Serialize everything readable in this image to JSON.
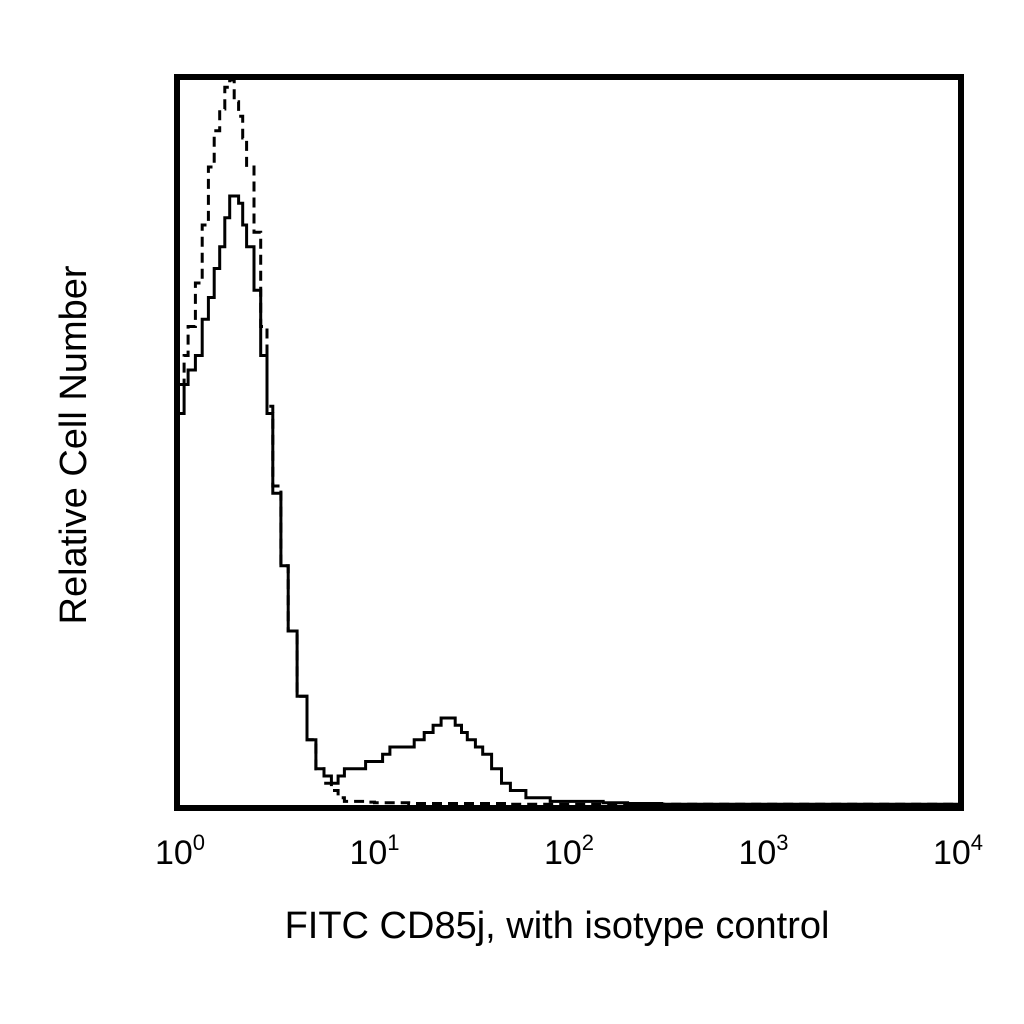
{
  "chart_data": {
    "type": "line",
    "title": "",
    "xlabel": "FITC CD85j, with isotype control",
    "ylabel": "Relative Cell Number",
    "x_scale": "log",
    "xlim": [
      1,
      10000
    ],
    "ylim": [
      0,
      100
    ],
    "grid": false,
    "legend": "none",
    "x_ticks": [
      {
        "value": 1,
        "base": "10",
        "exp": "0"
      },
      {
        "value": 10,
        "base": "10",
        "exp": "1"
      },
      {
        "value": 100,
        "base": "10",
        "exp": "2"
      },
      {
        "value": 1000,
        "base": "10",
        "exp": "3"
      },
      {
        "value": 10000,
        "base": "10",
        "exp": "4"
      }
    ],
    "series": [
      {
        "style": "solid",
        "color": "#000000",
        "x": [
          1.0,
          1.05,
          1.1,
          1.2,
          1.3,
          1.4,
          1.5,
          1.6,
          1.7,
          1.8,
          1.9,
          2.0,
          2.1,
          2.2,
          2.4,
          2.6,
          2.8,
          3.0,
          3.3,
          3.6,
          4.0,
          4.5,
          5.0,
          5.5,
          6.0,
          6.5,
          7.0,
          8.0,
          9.0,
          10,
          11,
          12,
          14,
          16,
          18,
          20,
          22,
          24,
          26,
          28,
          30,
          33,
          36,
          40,
          45,
          50,
          60,
          70,
          80,
          100,
          120,
          150,
          200,
          300,
          500,
          1000,
          2000,
          10000
        ],
        "y": [
          54,
          58,
          60,
          62,
          67,
          70,
          74,
          77,
          81,
          84,
          84,
          83,
          80,
          77,
          71,
          62,
          54,
          43,
          33,
          24,
          15,
          9,
          5,
          4,
          3,
          4,
          5,
          5,
          6,
          6,
          7,
          8,
          8,
          9,
          10,
          11,
          12,
          12,
          11,
          10,
          9,
          8,
          7,
          5,
          3,
          2,
          1,
          1,
          0.5,
          0.5,
          0.5,
          0.3,
          0.2,
          0.1,
          0.1,
          0.1,
          0.1,
          0.1
        ]
      },
      {
        "style": "dashed",
        "color": "#000000",
        "x": [
          1.0,
          1.05,
          1.1,
          1.2,
          1.3,
          1.4,
          1.5,
          1.6,
          1.7,
          1.8,
          1.9,
          2.0,
          2.1,
          2.2,
          2.4,
          2.6,
          2.8,
          3.0,
          3.3,
          3.6,
          4.0,
          4.5,
          5.0,
          5.5,
          6.0,
          6.5,
          7.0,
          8.0,
          9.0,
          10,
          12,
          15,
          20,
          30,
          50,
          100,
          200,
          1000,
          10000
        ],
        "y": [
          58,
          62,
          66,
          72,
          80,
          88,
          93,
          96,
          99,
          100,
          97,
          95,
          92,
          88,
          79,
          66,
          55,
          44,
          33,
          24,
          15,
          9,
          5,
          3,
          2,
          1,
          0.5,
          0.5,
          0.4,
          0.3,
          0.3,
          0.2,
          0.2,
          0.2,
          0.1,
          0.1,
          0.1,
          0.1,
          0.1
        ]
      }
    ]
  }
}
